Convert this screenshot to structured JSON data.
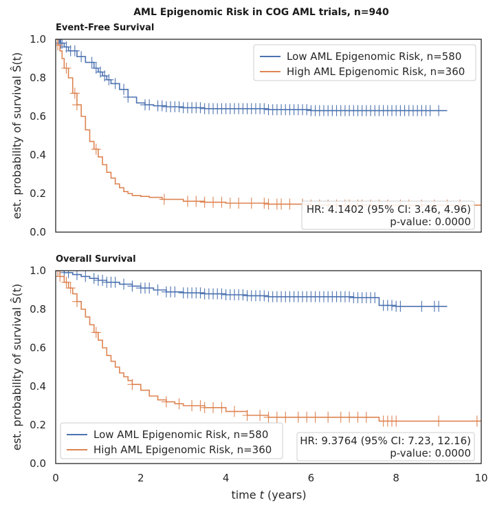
{
  "figure": {
    "suptitle": "AML Epigenomic Risk in COG AML trials, n=940"
  },
  "colors": {
    "low": "#4c72b0",
    "high": "#dd8452"
  },
  "chart_data": [
    {
      "type": "line",
      "title": "Event-Free Survival",
      "xlabel": "",
      "ylabel": "est. probability of survival Ŝ(t)",
      "xlim": [
        0,
        10
      ],
      "ylim": [
        0,
        1
      ],
      "xticks": [
        0,
        2,
        4,
        6,
        8,
        10
      ],
      "yticks": [
        "0.0",
        "0.2",
        "0.4",
        "0.6",
        "0.8",
        "1.0"
      ],
      "legend_position": "top-right",
      "show_xticklabels": false,
      "series": [
        {
          "name": "Low AML Epigenomic Risk, n=580",
          "color": "#4c72b0",
          "x": [
            0,
            0.1,
            0.2,
            0.3,
            0.5,
            0.7,
            0.9,
            1.0,
            1.1,
            1.2,
            1.3,
            1.5,
            1.7,
            1.9,
            2.1,
            2.3,
            2.6,
            3.0,
            3.5,
            4.0,
            5.0,
            6.0,
            7.0,
            8.0,
            9.0,
            9.2
          ],
          "y": [
            1.0,
            0.98,
            0.96,
            0.94,
            0.91,
            0.88,
            0.85,
            0.83,
            0.81,
            0.79,
            0.77,
            0.74,
            0.7,
            0.67,
            0.66,
            0.655,
            0.65,
            0.645,
            0.64,
            0.64,
            0.635,
            0.63,
            0.63,
            0.63,
            0.63,
            0.63
          ],
          "censor_x": [
            0.05,
            0.08,
            0.12,
            0.15,
            0.25,
            0.35,
            0.45,
            0.6,
            0.85,
            0.95,
            1.05,
            1.15,
            1.25,
            1.4,
            1.6,
            1.7,
            2.1,
            2.2,
            2.4,
            2.5,
            2.6,
            2.7,
            2.8,
            2.9,
            3.0,
            3.1,
            3.2,
            3.3,
            3.4,
            3.5,
            3.6,
            3.7,
            3.8,
            3.9,
            4.0,
            4.1,
            4.2,
            4.3,
            4.4,
            4.5,
            4.6,
            4.7,
            4.8,
            4.9,
            5.0,
            5.1,
            5.2,
            5.3,
            5.4,
            5.5,
            5.6,
            5.7,
            5.8,
            5.9,
            6.0,
            6.1,
            6.2,
            6.3,
            6.4,
            6.5,
            6.6,
            6.7,
            6.8,
            6.9,
            7.0,
            7.1,
            7.2,
            7.3,
            7.4,
            7.5,
            7.6,
            7.7,
            7.8,
            7.9,
            8.0,
            8.1,
            8.2,
            8.3,
            8.4,
            8.5,
            8.6,
            8.7,
            8.8,
            9.0
          ]
        },
        {
          "name": "High AML Epigenomic Risk, n=360",
          "color": "#dd8452",
          "x": [
            0,
            0.05,
            0.1,
            0.15,
            0.2,
            0.3,
            0.4,
            0.5,
            0.6,
            0.7,
            0.8,
            0.9,
            1.0,
            1.1,
            1.2,
            1.3,
            1.4,
            1.5,
            1.6,
            1.7,
            1.8,
            2.0,
            2.2,
            2.5,
            3.0,
            3.5,
            4.0,
            5.0,
            6.0,
            7.0,
            8.0,
            9.0,
            10.0
          ],
          "y": [
            1.0,
            0.97,
            0.94,
            0.9,
            0.85,
            0.8,
            0.72,
            0.66,
            0.6,
            0.53,
            0.47,
            0.43,
            0.39,
            0.35,
            0.31,
            0.28,
            0.25,
            0.23,
            0.21,
            0.2,
            0.19,
            0.185,
            0.18,
            0.17,
            0.16,
            0.155,
            0.15,
            0.145,
            0.14,
            0.14,
            0.14,
            0.14,
            0.14
          ],
          "censor_x": [
            0.05,
            0.25,
            0.45,
            0.5,
            0.95,
            2.55,
            3.1,
            3.3,
            3.5,
            3.7,
            3.9,
            4.1,
            4.3,
            4.6,
            4.9,
            5.0,
            5.2,
            5.3,
            5.5,
            5.8,
            6.0,
            6.2,
            6.4,
            6.6,
            6.8,
            6.9,
            7.1,
            7.2,
            7.4,
            7.6,
            7.8,
            8.1,
            8.3,
            8.6,
            8.9,
            9.2,
            9.5
          ]
        }
      ],
      "annotation": {
        "hr": "HR: 4.1402 (95% CI: 3.46, 4.96)",
        "p": "p-value: 0.0000"
      }
    },
    {
      "type": "line",
      "title": "Overall Survival",
      "xlabel": "time t (years)",
      "ylabel": "est. probability of survival Ŝ(t)",
      "xlim": [
        0,
        10
      ],
      "ylim": [
        0,
        1
      ],
      "xticks": [
        "0",
        "2",
        "4",
        "6",
        "8",
        "10"
      ],
      "yticks": [
        "0.0",
        "0.2",
        "0.4",
        "0.6",
        "0.8",
        "1.0"
      ],
      "legend_position": "bottom-left",
      "show_xticklabels": true,
      "series": [
        {
          "name": "Low AML Epigenomic Risk, n=580",
          "color": "#4c72b0",
          "x": [
            0,
            0.2,
            0.4,
            0.6,
            0.8,
            1.0,
            1.2,
            1.5,
            1.8,
            2.0,
            2.3,
            2.6,
            3.0,
            3.5,
            4.0,
            4.5,
            5.0,
            6.0,
            7.0,
            7.5,
            7.6,
            8.0,
            9.0,
            9.2
          ],
          "y": [
            1.0,
            0.99,
            0.98,
            0.97,
            0.96,
            0.95,
            0.94,
            0.93,
            0.92,
            0.91,
            0.9,
            0.89,
            0.885,
            0.88,
            0.875,
            0.87,
            0.865,
            0.865,
            0.86,
            0.86,
            0.82,
            0.815,
            0.815,
            0.815
          ],
          "censor_x": [
            0.05,
            0.1,
            0.2,
            0.3,
            0.5,
            0.7,
            0.9,
            1.0,
            1.1,
            1.2,
            1.3,
            1.4,
            1.6,
            1.8,
            2.0,
            2.1,
            2.2,
            2.4,
            2.6,
            2.7,
            2.8,
            3.0,
            3.1,
            3.2,
            3.3,
            3.4,
            3.5,
            3.6,
            3.7,
            3.8,
            3.9,
            4.0,
            4.1,
            4.2,
            4.3,
            4.4,
            4.5,
            4.6,
            4.7,
            4.8,
            4.9,
            5.0,
            5.1,
            5.2,
            5.3,
            5.4,
            5.5,
            5.6,
            5.7,
            5.8,
            5.9,
            6.0,
            6.1,
            6.2,
            6.3,
            6.4,
            6.5,
            6.6,
            6.7,
            6.8,
            6.9,
            7.0,
            7.1,
            7.2,
            7.3,
            7.4,
            7.5,
            7.7,
            7.8,
            7.9,
            8.0,
            8.1,
            8.6,
            8.9,
            9.0
          ]
        },
        {
          "name": "High AML Epigenomic Risk, n=360",
          "color": "#dd8452",
          "x": [
            0,
            0.1,
            0.2,
            0.3,
            0.4,
            0.5,
            0.6,
            0.7,
            0.8,
            0.9,
            1.0,
            1.1,
            1.2,
            1.3,
            1.4,
            1.5,
            1.6,
            1.7,
            1.8,
            2.0,
            2.2,
            2.4,
            2.6,
            2.8,
            3.0,
            3.5,
            4.0,
            4.5,
            5.0,
            6.0,
            7.0,
            7.5,
            7.6,
            8.0,
            9.0,
            10.0
          ],
          "y": [
            1.0,
            0.97,
            0.94,
            0.91,
            0.88,
            0.84,
            0.8,
            0.76,
            0.72,
            0.68,
            0.64,
            0.6,
            0.56,
            0.53,
            0.5,
            0.47,
            0.45,
            0.43,
            0.41,
            0.38,
            0.35,
            0.33,
            0.32,
            0.31,
            0.3,
            0.29,
            0.27,
            0.25,
            0.24,
            0.24,
            0.24,
            0.24,
            0.22,
            0.22,
            0.22,
            0.22
          ],
          "censor_x": [
            0.05,
            0.1,
            0.25,
            0.35,
            0.5,
            0.95,
            1.8,
            2.6,
            2.9,
            3.2,
            3.4,
            3.5,
            3.7,
            3.9,
            4.2,
            4.5,
            4.8,
            5.0,
            5.2,
            5.4,
            5.7,
            5.9,
            6.1,
            6.4,
            6.7,
            6.9,
            7.1,
            7.3,
            7.7,
            7.8,
            7.9,
            8.0,
            9.0,
            9.9
          ]
        }
      ],
      "annotation": {
        "hr": "HR: 9.3764 (95% CI: 7.23, 12.16)",
        "p": "p-value: 0.0000"
      }
    }
  ]
}
